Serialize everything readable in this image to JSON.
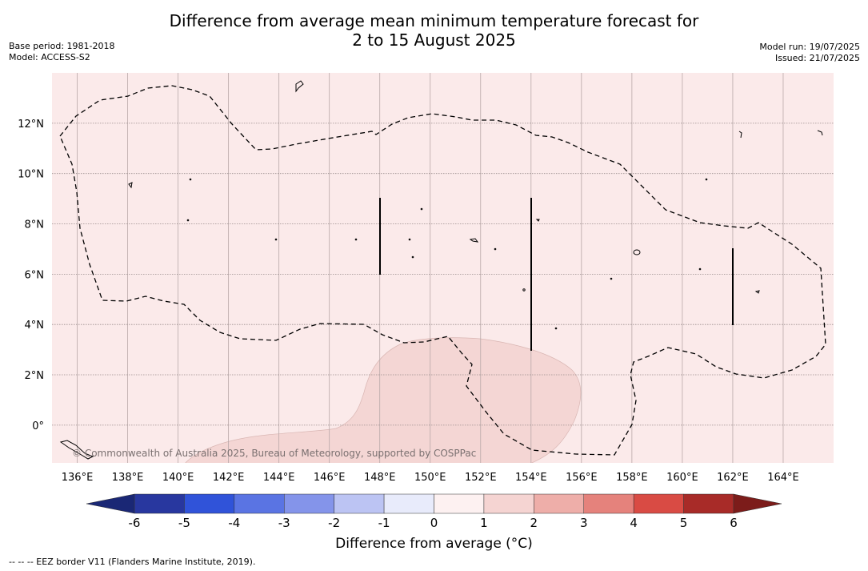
{
  "title_line1": "Difference from average mean minimum temperature forecast for",
  "title_line2": "2 to 15 August 2025",
  "base_period": "Base period: 1981-2018",
  "model": "Model: ACCESS-S2",
  "model_run": "Model run: 19/07/2025",
  "issued": "Issued: 21/07/2025",
  "copyright": "© Commonwealth of Australia 2025, Bureau of Meteorology, supported by COSPPac",
  "footnote": "-- -- -- EEZ border V11 (Flanders Marine Institute, 2019).",
  "map": {
    "lon_range": [
      135,
      166
    ],
    "lat_range": [
      -1.5,
      14
    ],
    "lon_ticks": [
      "136°E",
      "138°E",
      "140°E",
      "142°E",
      "144°E",
      "146°E",
      "148°E",
      "150°E",
      "152°E",
      "154°E",
      "156°E",
      "158°E",
      "160°E",
      "162°E",
      "164°E"
    ],
    "lat_ticks": [
      "12°N",
      "10°N",
      "8°N",
      "6°N",
      "4°N",
      "2°N",
      "0°"
    ],
    "grid": true,
    "background_color": "#fbeaea",
    "anomaly_region_color": "#f4d6d4"
  },
  "colorbar": {
    "title": "Difference from average (°C)",
    "tick_labels": [
      "-6",
      "-5",
      "-4",
      "-3",
      "-2",
      "-1",
      "0",
      "1",
      "2",
      "3",
      "4",
      "5",
      "6"
    ],
    "colors": [
      "#28379f",
      "#3053d9",
      "#5a74e3",
      "#8494ea",
      "#bcc4f3",
      "#e8ebfb",
      "#fdf1f1",
      "#f5d4d2",
      "#eeaea9",
      "#e5827c",
      "#d94b44",
      "#a82b28"
    ],
    "under_color": "#1a2775",
    "over_color": "#7c1c1a"
  }
}
